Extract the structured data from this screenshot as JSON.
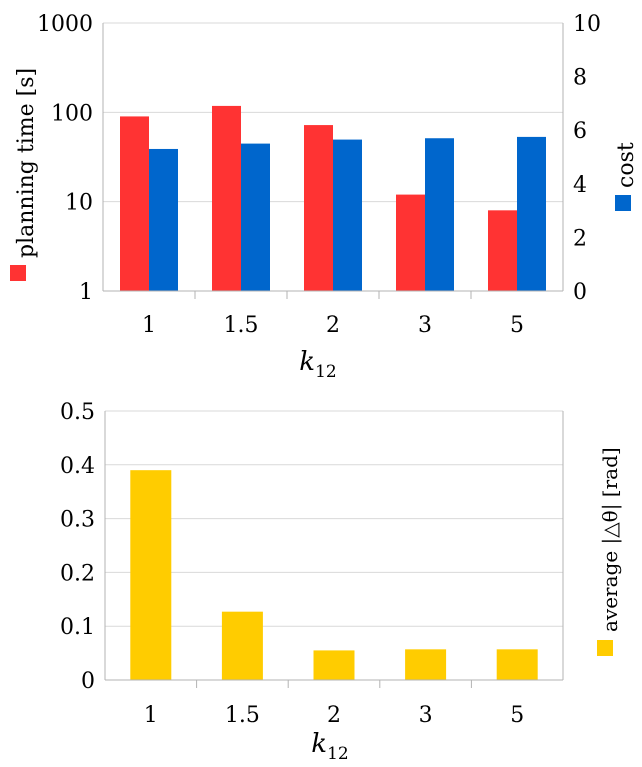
{
  "chart_data": [
    {
      "type": "bar",
      "categories": [
        "1",
        "1.5",
        "2",
        "3",
        "5"
      ],
      "xlabel": "k",
      "xlabel_sub": "12",
      "series": [
        {
          "name": "planning time [s]",
          "axis": "left",
          "scale": "log",
          "color": "#ff3333",
          "values": [
            90,
            118,
            72,
            12,
            8
          ]
        },
        {
          "name": "cost",
          "axis": "right",
          "scale": "linear",
          "color": "#0066cc",
          "values": [
            5.3,
            5.5,
            5.65,
            5.7,
            5.75
          ]
        }
      ],
      "ylim_left": [
        1,
        1000
      ],
      "yticks_left": [
        "1",
        "10",
        "100",
        "1000"
      ],
      "ylim_right": [
        0,
        10
      ],
      "yticks_right": [
        "0",
        "2",
        "4",
        "6",
        "8",
        "10"
      ],
      "legend_left": "planning time [s]",
      "legend_right": "cost",
      "legend_placement": "vertical, outside left and right axes"
    },
    {
      "type": "bar",
      "categories": [
        "1",
        "1.5",
        "2",
        "3",
        "5"
      ],
      "xlabel": "k",
      "xlabel_sub": "12",
      "series": [
        {
          "name": "average |Δθ| [rad]",
          "color": "#ffcc00",
          "values": [
            0.39,
            0.127,
            0.055,
            0.057,
            0.057
          ]
        }
      ],
      "ylim": [
        0,
        0.5
      ],
      "yticks": [
        "0",
        "0.1",
        "0.2",
        "0.3",
        "0.4",
        "0.5"
      ],
      "legend": "average |△θ| [rad]",
      "legend_placement": "vertical, outside right"
    }
  ]
}
